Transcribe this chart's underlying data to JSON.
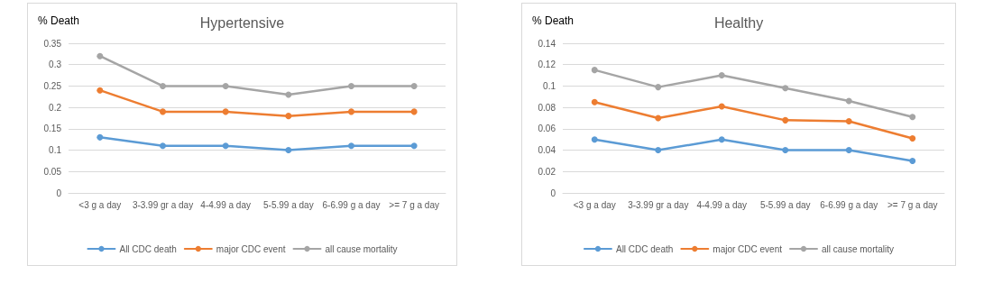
{
  "chart_data": [
    {
      "type": "line",
      "title": "Hypertensive",
      "ylabel": "% Death",
      "categories": [
        "<3 g a day",
        "3-3.99 gr a day",
        "4-4.99 a day",
        "5-5.99 a day",
        "6-6.99 g a day",
        ">= 7 g a day"
      ],
      "series": [
        {
          "name": "All CDC death",
          "color": "#5b9bd5",
          "values": [
            0.13,
            0.11,
            0.11,
            0.1,
            0.11,
            0.11
          ]
        },
        {
          "name": "major CDC event",
          "color": "#ed7d31",
          "values": [
            0.24,
            0.19,
            0.19,
            0.18,
            0.19,
            0.19
          ]
        },
        {
          "name": "all cause mortality",
          "color": "#a5a5a5",
          "values": [
            0.32,
            0.25,
            0.25,
            0.23,
            0.25,
            0.25
          ]
        }
      ],
      "ylim": [
        0,
        0.35
      ],
      "yticks": [
        0,
        0.05,
        0.1,
        0.15,
        0.2,
        0.25,
        0.3,
        0.35
      ],
      "grid": "y",
      "legend": "bottom",
      "marker": "circle",
      "line_style": "solid"
    },
    {
      "type": "line",
      "title": "Healthy",
      "ylabel": "% Death",
      "categories": [
        "<3 g a day",
        "3-3.99 gr a day",
        "4-4.99 a day",
        "5-5.99 a day",
        "6-6.99 g a day",
        ">= 7 g a day"
      ],
      "series": [
        {
          "name": "All CDC death",
          "color": "#5b9bd5",
          "values": [
            0.05,
            0.04,
            0.05,
            0.04,
            0.04,
            0.03
          ]
        },
        {
          "name": "major CDC event",
          "color": "#ed7d31",
          "values": [
            0.085,
            0.07,
            0.081,
            0.068,
            0.067,
            0.051
          ]
        },
        {
          "name": "all cause mortality",
          "color": "#a5a5a5",
          "values": [
            0.115,
            0.099,
            0.11,
            0.098,
            0.086,
            0.071
          ]
        }
      ],
      "ylim": [
        0,
        0.14
      ],
      "yticks": [
        0,
        0.02,
        0.04,
        0.06,
        0.08,
        0.1,
        0.12,
        0.14
      ],
      "grid": "y",
      "legend": "bottom",
      "marker": "circle",
      "line_style": "solid"
    }
  ]
}
